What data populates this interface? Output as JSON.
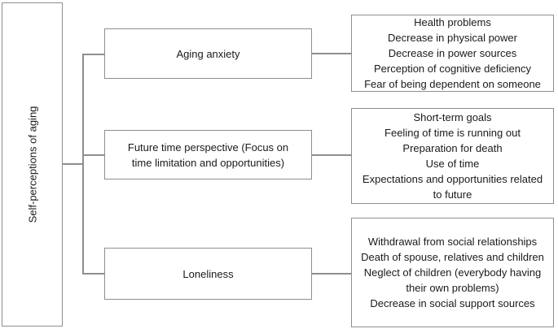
{
  "diagram": {
    "title": "Self-perceptions of aging concept diagram",
    "root": {
      "label": "Self-perceptions of aging"
    },
    "branches": [
      {
        "category": "Aging anxiety",
        "category_lines": [
          "Aging anxiety"
        ],
        "outcomes": [
          "Health problems",
          "Decrease in physical power",
          "Decrease in power sources",
          "Perception of cognitive deficiency",
          "Fear of being dependent on someone"
        ],
        "outcome_lines": [
          "Health problems",
          "Decrease in physical power",
          "Decrease in power sources",
          "Perception of cognitive deficiency",
          "Fear of being dependent on someone"
        ]
      },
      {
        "category": "Future time perspective (Focus on time limitation and opportunities)",
        "category_lines": [
          "Future time perspective (Focus on",
          "time limitation and opportunities)"
        ],
        "outcomes": [
          "Short-term goals",
          "Feeling of time is running out",
          "Preparation for death",
          "Use of time",
          "Expectations and opportunities related to future"
        ],
        "outcome_lines": [
          "Short-term goals",
          "Feeling of time is running out",
          "Preparation for death",
          "Use of time",
          "Expectations and opportunities related",
          "to future"
        ]
      },
      {
        "category": "Loneliness",
        "category_lines": [
          "Loneliness"
        ],
        "outcomes": [
          "Withdrawal from social relationships",
          "Death of spouse, relatives and children",
          "Neglect of children (everybody having their own problems)",
          "Decrease in social support sources"
        ],
        "outcome_lines": [
          "Withdrawal from social relationships",
          "Death of spouse, relatives and children",
          "Neglect of children (everybody having",
          "their own problems)",
          "Decrease in social support sources"
        ]
      }
    ],
    "colors": {
      "border": "#8e8e8e",
      "line": "#8e8e8e",
      "text": "#1a1a1a",
      "background": "#ffffff"
    }
  }
}
